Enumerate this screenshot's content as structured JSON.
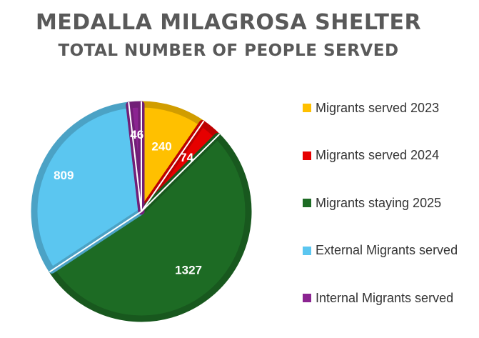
{
  "header": {
    "title": "MEDALLA MILAGROSA SHELTER",
    "subtitle": "TOTAL NUMBER OF PEOPLE SERVED"
  },
  "chart_data": {
    "type": "pie",
    "title": "MEDALLA MILAGROSA SHELTER",
    "subtitle": "TOTAL NUMBER OF PEOPLE SERVED",
    "legend_position": "right",
    "slices": [
      {
        "label": "Migrants served 2023",
        "value": 240,
        "color": "#ffc000"
      },
      {
        "label": "Migrants served 2024",
        "value": 74,
        "color": "#e60000"
      },
      {
        "label": "Migrants staying 2025",
        "value": 1327,
        "color": "#1d6b24"
      },
      {
        "label": "External Migrants served",
        "value": 809,
        "color": "#5bc6f0"
      },
      {
        "label": "Internal Migrants served",
        "value": 46,
        "color": "#8b2491"
      }
    ]
  }
}
